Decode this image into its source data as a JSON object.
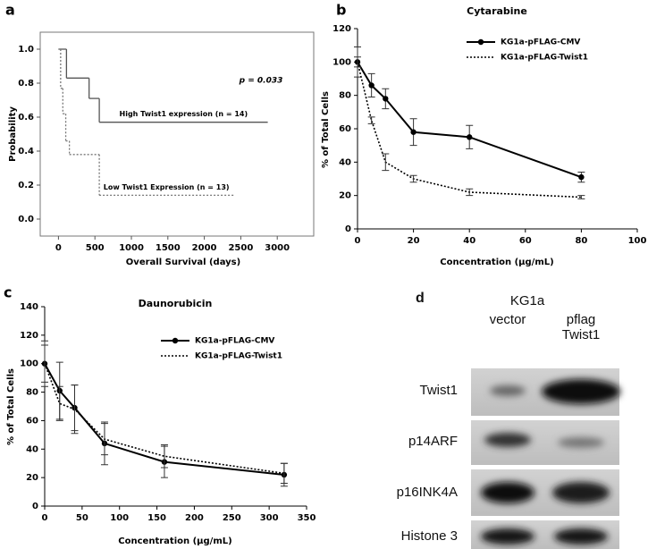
{
  "chart_data": [
    {
      "type": "step",
      "panel_label": "a",
      "x_label": "Overall Survival (days)",
      "y_label": "Probability",
      "xlim": [
        -250,
        3500
      ],
      "xticks": [
        0,
        500,
        1000,
        1500,
        2000,
        2500,
        3000
      ],
      "ylim": [
        -0.1,
        1.1
      ],
      "yticks": [
        {
          "value": 0,
          "label": "0.0"
        },
        0.2,
        0.4,
        0.6,
        0.8,
        {
          "value": 1,
          "label": "1.0"
        }
      ],
      "frame": true,
      "grid": false,
      "annotations": [
        "p = 0.033"
      ],
      "series": [
        {
          "name": "High Twist1 expression (n = 14)",
          "color": "#555555",
          "line_style": "solid",
          "x": [
            0,
            110,
            420,
            560,
            2870
          ],
          "values": [
            1.0,
            0.83,
            0.71,
            0.57,
            0.57
          ]
        },
        {
          "name": "Low Twist1 Expression (n = 13)",
          "color": "#777777",
          "line_style": "dotted",
          "x": [
            0,
            30,
            60,
            100,
            150,
            560,
            2400
          ],
          "values": [
            1.0,
            0.77,
            0.62,
            0.46,
            0.38,
            0.14,
            0.14
          ]
        }
      ]
    },
    {
      "type": "line",
      "panel_label": "b",
      "title": "Cytarabine",
      "x_label": "Concentration (µg/mL)",
      "y_label": "% of Total Cells",
      "xlim": [
        0,
        100
      ],
      "xticks": [
        0,
        20,
        40,
        60,
        80,
        100
      ],
      "ylim": [
        0,
        120
      ],
      "yticks": [
        0,
        20,
        40,
        60,
        80,
        100,
        120
      ],
      "grid": false,
      "legend": "upper right",
      "series": [
        {
          "name": "KG1a-pFLAG-CMV",
          "color": "#000000",
          "line_style": "solid",
          "marker": "circle",
          "x": [
            0,
            5,
            10,
            20,
            40,
            80
          ],
          "values": [
            100,
            86,
            78,
            58,
            55,
            31
          ],
          "errors": [
            9,
            7,
            6,
            8,
            7,
            3
          ]
        },
        {
          "name": "KG1a-pFLAG-Twist1",
          "color": "#000000",
          "line_style": "dotted",
          "marker": "none",
          "x": [
            0,
            5,
            10,
            20,
            40,
            80
          ],
          "values": [
            100,
            65,
            40,
            30,
            22,
            19
          ],
          "errors": [
            3,
            2,
            5,
            2,
            2,
            1
          ]
        }
      ]
    },
    {
      "type": "line",
      "panel_label": "c",
      "title": "Daunorubicin",
      "x_label": "Concentration (µg/mL)",
      "y_label": "% of Total Cells",
      "xlim": [
        0,
        350
      ],
      "xticks": [
        0,
        50,
        100,
        150,
        200,
        250,
        300,
        350
      ],
      "ylim": [
        0,
        140
      ],
      "yticks": [
        0,
        20,
        40,
        60,
        80,
        100,
        120,
        140
      ],
      "grid": false,
      "legend": "upper right",
      "series": [
        {
          "name": "KG1a-pFLAG-CMV",
          "color": "#000000",
          "line_style": "solid",
          "marker": "circle",
          "x": [
            0,
            20,
            40,
            80,
            160,
            320
          ],
          "values": [
            100,
            81,
            69,
            44,
            31,
            22
          ],
          "errors": [
            13,
            20,
            16,
            15,
            11,
            8
          ]
        },
        {
          "name": "KG1a-pFLAG-Twist1",
          "color": "#000000",
          "line_style": "dotted",
          "marker": "none",
          "x": [
            0,
            20,
            40,
            80,
            160,
            320
          ],
          "values": [
            100,
            72,
            68,
            47,
            35,
            23
          ],
          "errors": [
            16,
            12,
            17,
            11,
            8,
            7
          ]
        }
      ]
    }
  ],
  "blot": {
    "panel_label": "d",
    "title": "KG1a",
    "columns": [
      "vector",
      "pflag Twist1"
    ],
    "rows": [
      "Twist1",
      "p14ARF",
      "p16INK4A",
      "Histone 3"
    ]
  }
}
